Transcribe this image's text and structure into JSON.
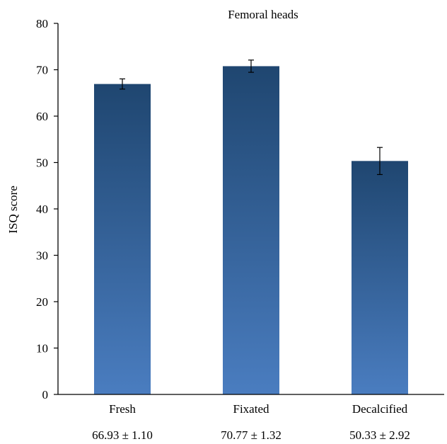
{
  "chart_data": {
    "type": "bar",
    "title": "Femoral heads",
    "xlabel": "",
    "ylabel": "ISQ score",
    "ylim": [
      0,
      80
    ],
    "yticks": [
      0,
      10,
      20,
      30,
      40,
      50,
      60,
      70,
      80
    ],
    "grid": false,
    "categories": [
      "Fresh",
      "Fixated",
      "Decalcified"
    ],
    "values": [
      66.93,
      70.77,
      50.33
    ],
    "errors": [
      1.1,
      1.32,
      2.92
    ],
    "value_labels": [
      "66.93 ± 1.10",
      "70.77 ± 1.32",
      "50.33 ± 2.92"
    ],
    "colors": {
      "bar_top": "#1f4670",
      "bar_bottom": "#4a7dc0",
      "axis": "#000000"
    }
  }
}
